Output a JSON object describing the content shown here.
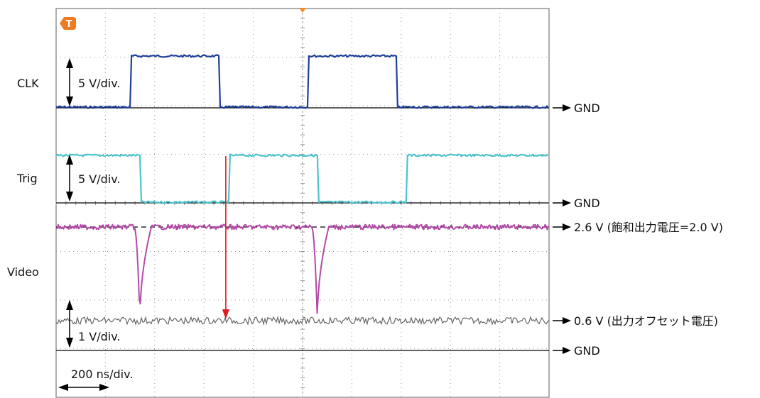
{
  "chart_data": {
    "type": "line",
    "title": "",
    "grid": true,
    "timebase_label": "200 ns/div.",
    "channels": [
      {
        "name": "CLK",
        "scale_label": "5 V/div.",
        "gnd_label": "GND",
        "color": "#1f3f9a",
        "transitions_div": [
          1.5,
          3.3,
          5.1,
          6.9
        ],
        "initial_level": "low"
      },
      {
        "name": "Trig",
        "scale_label": "5 V/div.",
        "gnd_label": "GND",
        "color": "#4cc3cc",
        "transitions_div": [
          1.7,
          3.5,
          5.3,
          7.1
        ],
        "initial_level": "high"
      },
      {
        "name": "Video",
        "scale_label": "1 V/div.",
        "gnd_label": "GND",
        "color_saturation": "#b44aa8",
        "color_offset": "#666666",
        "level_high_label": "2.6 V (飽和出力電圧=2.0 V)",
        "level_low_label": "0.6 V (出力オフセット電圧)",
        "level_high_v": 2.6,
        "level_low_v": 0.6,
        "pulse_centers_div": [
          1.7,
          5.3
        ]
      }
    ],
    "trigger_marker_div": 3.5,
    "x_divisions": 10,
    "y_divisions": 8
  }
}
